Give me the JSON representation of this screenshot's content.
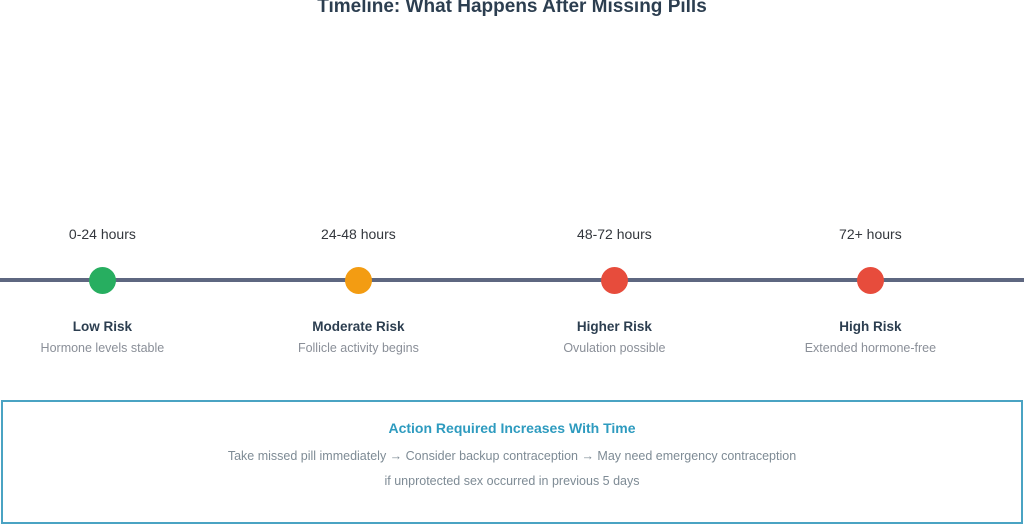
{
  "title": "Timeline: What Happens After Missing Pills",
  "colors": {
    "line": "#5e6780",
    "box_border": "#4aa3c3",
    "accent_teal": "#2e9bbf",
    "green": "#27ae60",
    "orange": "#f39c12",
    "red": "#e74c3c"
  },
  "events": [
    {
      "time": "0-24 hours",
      "risk": "Low Risk",
      "note": "Hormone levels stable",
      "color": "#27ae60"
    },
    {
      "time": "24-48 hours",
      "risk": "Moderate Risk",
      "note": "Follicle activity begins",
      "color": "#f39c12"
    },
    {
      "time": "48-72 hours",
      "risk": "Higher Risk",
      "note": "Ovulation possible",
      "color": "#e74c3c"
    },
    {
      "time": "72+ hours",
      "risk": "High Risk",
      "note": "Extended hormone-free",
      "color": "#e74c3c"
    }
  ],
  "action_box": {
    "title": "Action Required Increases With Time",
    "line1": "Take missed pill immediately → Consider backup contraception → May need emergency contraception",
    "line2": "if unprotected sex occurred in previous 5 days"
  }
}
